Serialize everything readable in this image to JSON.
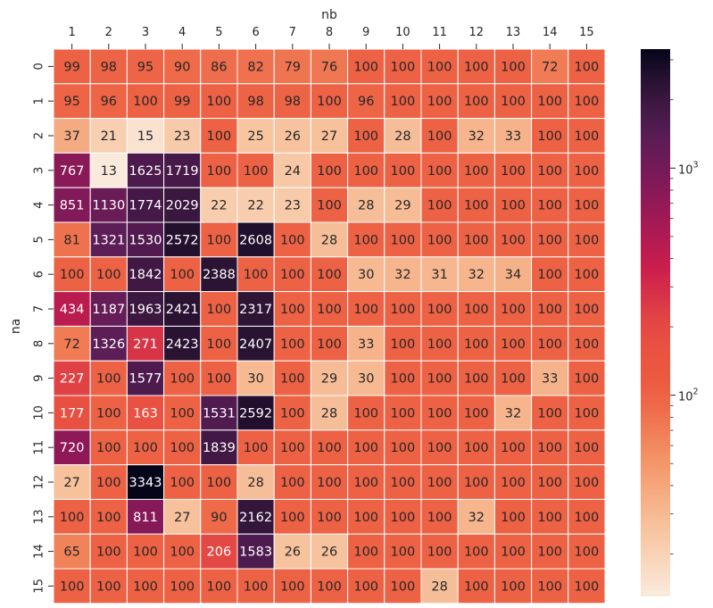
{
  "chart_data": {
    "type": "heatmap",
    "xlabel": "nb",
    "ylabel": "na",
    "x_categories": [
      "1",
      "2",
      "3",
      "4",
      "5",
      "6",
      "7",
      "8",
      "9",
      "10",
      "11",
      "12",
      "13",
      "14",
      "15"
    ],
    "y_categories": [
      "0",
      "1",
      "2",
      "3",
      "4",
      "5",
      "6",
      "7",
      "8",
      "9",
      "10",
      "11",
      "12",
      "13",
      "14",
      "15"
    ],
    "x_axis_position": "top",
    "values": [
      [
        99,
        98,
        95,
        90,
        86,
        82,
        79,
        76,
        100,
        100,
        100,
        100,
        100,
        72,
        100
      ],
      [
        95,
        96,
        100,
        99,
        100,
        98,
        98,
        100,
        96,
        100,
        100,
        100,
        100,
        100,
        100
      ],
      [
        37,
        21,
        15,
        23,
        100,
        25,
        26,
        27,
        100,
        28,
        100,
        32,
        33,
        100,
        100
      ],
      [
        767,
        13,
        1625,
        1719,
        100,
        100,
        24,
        100,
        100,
        100,
        100,
        100,
        100,
        100,
        100
      ],
      [
        851,
        1130,
        1774,
        2029,
        22,
        22,
        23,
        100,
        28,
        29,
        100,
        100,
        100,
        100,
        100
      ],
      [
        81,
        1321,
        1530,
        2572,
        100,
        2608,
        100,
        28,
        100,
        100,
        100,
        100,
        100,
        100,
        100
      ],
      [
        100,
        100,
        1842,
        100,
        2388,
        100,
        100,
        100,
        30,
        32,
        31,
        32,
        34,
        100,
        100
      ],
      [
        434,
        1187,
        1963,
        2421,
        100,
        2317,
        100,
        100,
        100,
        100,
        100,
        100,
        100,
        100,
        100
      ],
      [
        72,
        1326,
        271,
        2423,
        100,
        2407,
        100,
        100,
        33,
        100,
        100,
        100,
        100,
        100,
        100
      ],
      [
        227,
        100,
        1577,
        100,
        100,
        30,
        100,
        29,
        30,
        100,
        100,
        100,
        100,
        33,
        100
      ],
      [
        177,
        100,
        163,
        100,
        1531,
        2592,
        100,
        28,
        100,
        100,
        100,
        100,
        32,
        100,
        100
      ],
      [
        720,
        100,
        100,
        100,
        1839,
        100,
        100,
        100,
        100,
        100,
        100,
        100,
        100,
        100,
        100
      ],
      [
        27,
        100,
        3343,
        100,
        100,
        28,
        100,
        100,
        100,
        100,
        100,
        100,
        100,
        100,
        100
      ],
      [
        100,
        100,
        811,
        27,
        90,
        2162,
        100,
        100,
        100,
        100,
        100,
        32,
        100,
        100,
        100
      ],
      [
        65,
        100,
        100,
        100,
        206,
        1583,
        26,
        26,
        100,
        100,
        100,
        100,
        100,
        100,
        100
      ],
      [
        100,
        100,
        100,
        100,
        100,
        100,
        100,
        100,
        100,
        100,
        28,
        100,
        100,
        100,
        100
      ]
    ],
    "colorbar": {
      "scale": "log",
      "range": [
        13,
        3343
      ],
      "tick_labels": [
        {
          "value": 100,
          "label": "10",
          "exp": "2"
        },
        {
          "value": 1000,
          "label": "10",
          "exp": "3"
        }
      ],
      "colormap": "rocket_r"
    },
    "grid": false,
    "legend": "colorbar-right"
  }
}
